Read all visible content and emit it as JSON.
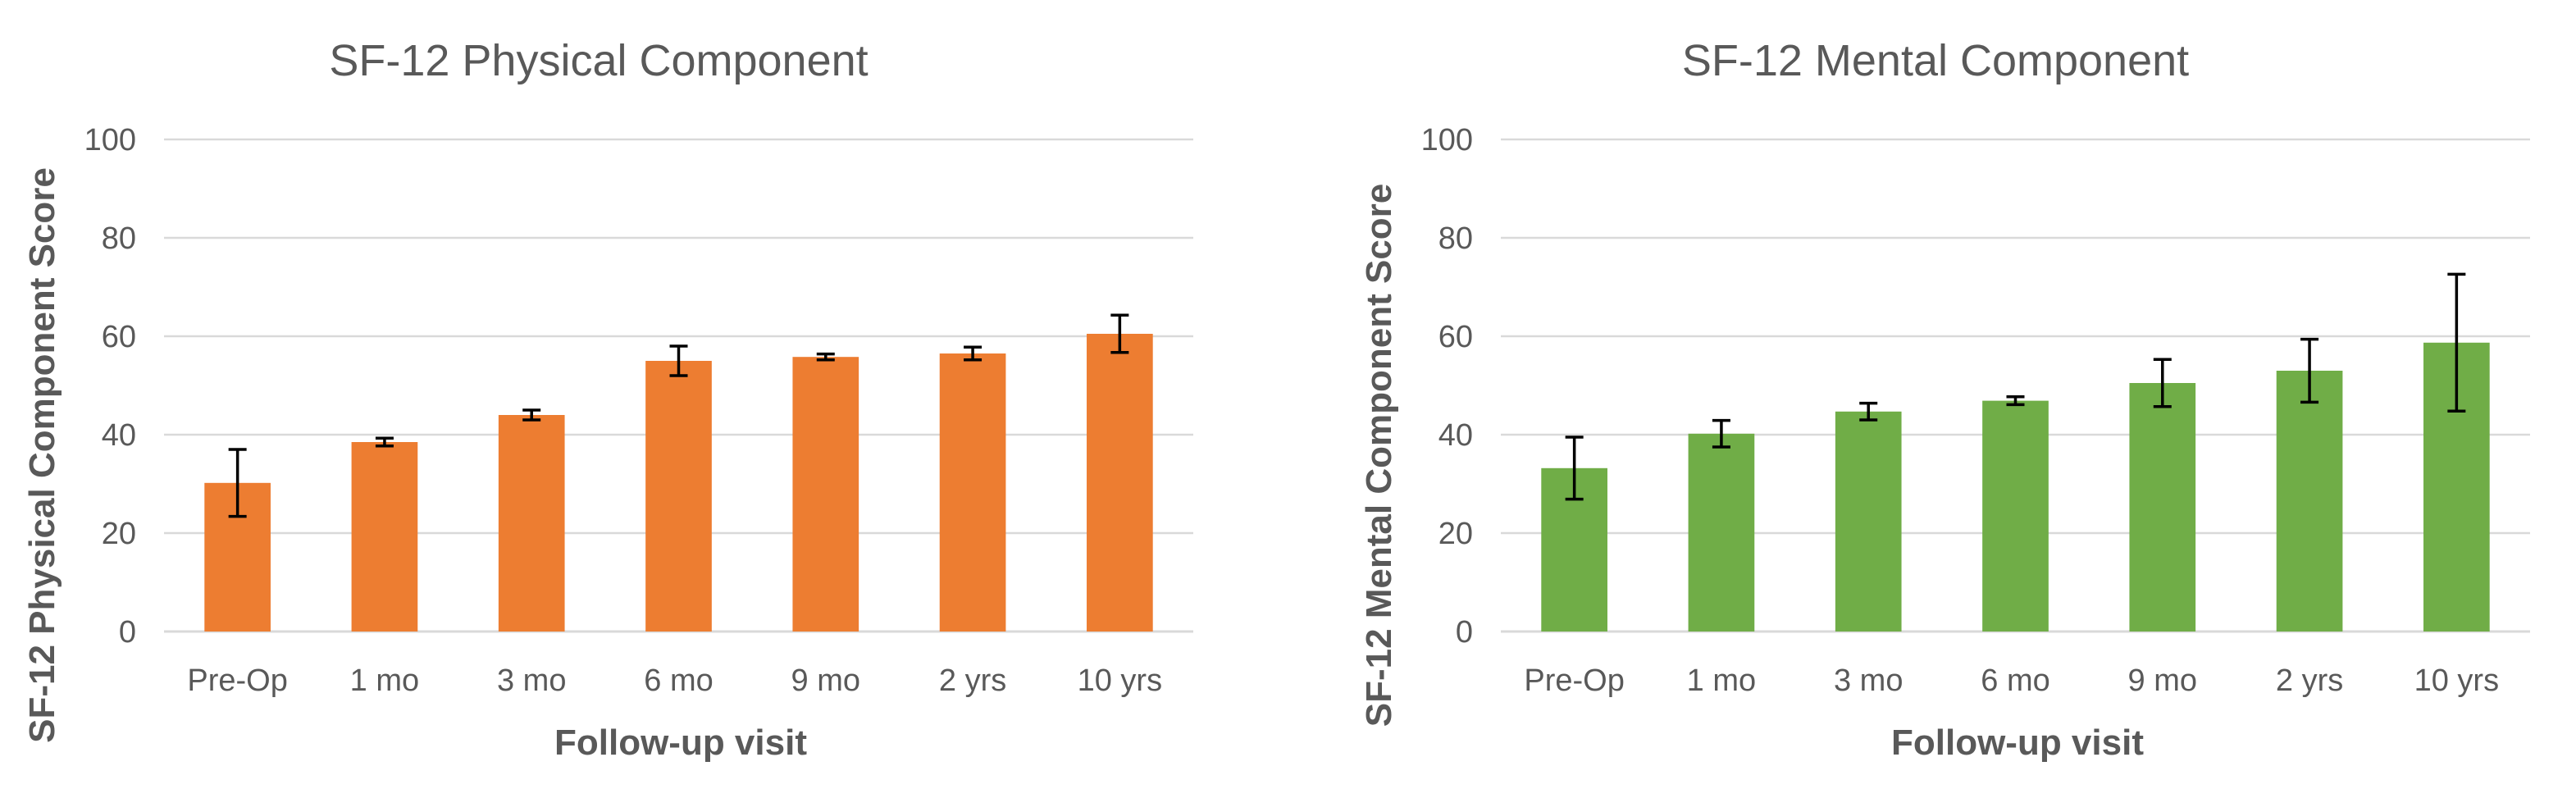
{
  "chart_data": [
    {
      "type": "bar",
      "title": "SF-12 Physical Component",
      "xlabel": "Follow-up visit",
      "ylabel": "SF-12 Physical Component Score",
      "categories": [
        "Pre-Op",
        "1 mo",
        "3 mo",
        "6 mo",
        "9 mo",
        "2 yrs",
        "10 yrs"
      ],
      "values": [
        30.2,
        38.5,
        44.0,
        55.0,
        55.8,
        56.5,
        60.5
      ],
      "errors": [
        6.8,
        0.8,
        1.0,
        3.0,
        0.6,
        1.3,
        3.8
      ],
      "ylim": [
        0,
        100
      ],
      "yticks": [
        "0",
        "20",
        "40",
        "60",
        "80",
        "100"
      ],
      "color": "#ED7D31",
      "grid": true,
      "legend": "none"
    },
    {
      "type": "bar",
      "title": "SF-12 Mental Component",
      "xlabel": "Follow-up visit",
      "ylabel": "SF-12 Mental Component Score",
      "categories": [
        "Pre-Op",
        "1 mo",
        "3 mo",
        "6 mo",
        "9 mo",
        "2 yrs",
        "10 yrs"
      ],
      "values": [
        33.2,
        40.2,
        44.7,
        46.9,
        50.5,
        53.0,
        58.7
      ],
      "errors": [
        6.3,
        2.7,
        1.7,
        0.8,
        4.8,
        6.4,
        13.9
      ],
      "ylim": [
        0,
        100
      ],
      "yticks": [
        "0",
        "20",
        "40",
        "60",
        "80",
        "100"
      ],
      "color": "#70AD47",
      "grid": true,
      "legend": "none"
    }
  ]
}
